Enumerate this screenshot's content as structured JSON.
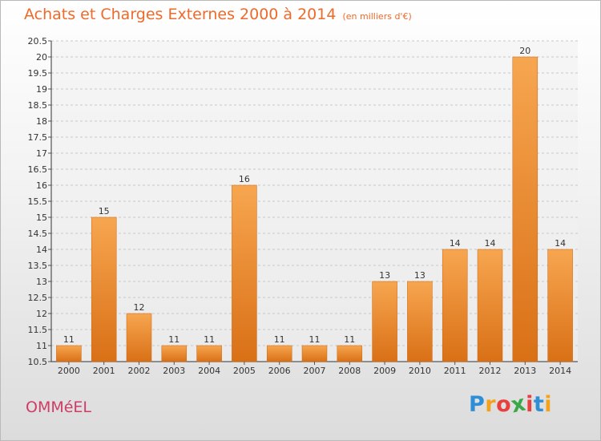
{
  "title": "Achats et Charges Externes 2000 à 2014",
  "unit_note": "(en milliers d'€)",
  "commune": "OMMéEL",
  "logo": {
    "letters": [
      "P",
      "r",
      "o",
      "x",
      "i",
      "t",
      "i"
    ],
    "colors": [
      "#2e8fd6",
      "#f2a31b",
      "#e8403e",
      "#3aa847",
      "#e8403e",
      "#2e8fd6",
      "#f2a31b"
    ]
  },
  "colors": {
    "bar_top": "#f7a650",
    "bar_bottom": "#d97016",
    "title": "#ee6a2a",
    "commune": "#cf3c66",
    "grid": "#c8c8c8"
  },
  "chart_data": {
    "type": "bar",
    "title": "Achats et Charges Externes 2000 à 2014",
    "xlabel": "",
    "ylabel": "",
    "categories": [
      "2000",
      "2001",
      "2002",
      "2003",
      "2004",
      "2005",
      "2006",
      "2007",
      "2008",
      "2009",
      "2010",
      "2011",
      "2012",
      "2013",
      "2014"
    ],
    "values": [
      11,
      15,
      12,
      11,
      11,
      16,
      11,
      11,
      11,
      13,
      13,
      14,
      14,
      20,
      14
    ],
    "ylim": [
      10.5,
      20.5
    ],
    "yticks": [
      "10.5",
      "11",
      "11.5",
      "12",
      "12.5",
      "13",
      "13.5",
      "14",
      "14.5",
      "15",
      "15.5",
      "16",
      "16.5",
      "17",
      "17.5",
      "18",
      "18.5",
      "19",
      "19.5",
      "20",
      "20.5"
    ],
    "grid": true,
    "data_labels": true
  }
}
